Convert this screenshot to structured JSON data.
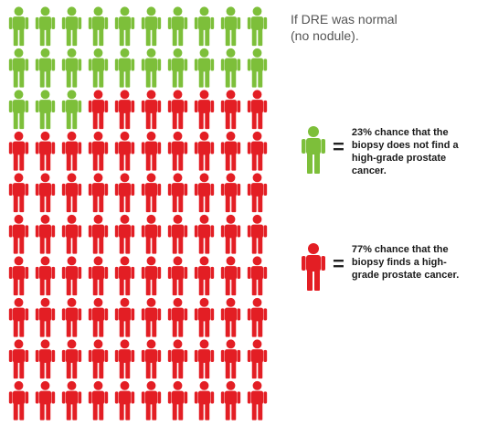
{
  "title_lines": [
    "If DRE was normal",
    "(no nodule)."
  ],
  "legend": [
    {
      "equals": "=",
      "text": "23% chance that the biopsy does not find a high-grade prostate cancer.",
      "color": "#7DBF3A"
    },
    {
      "equals": "=",
      "text": "77% chance that the biopsy finds a high-grade prostate cancer.",
      "color": "#E31E24"
    }
  ],
  "chart_data": {
    "type": "icon-array",
    "total": 100,
    "columns": 10,
    "rows": 10,
    "series": [
      {
        "values": [
          23
        ],
        "color": "#7DBF3A"
      },
      {
        "values": [
          77
        ],
        "color": "#E31E24"
      }
    ]
  }
}
